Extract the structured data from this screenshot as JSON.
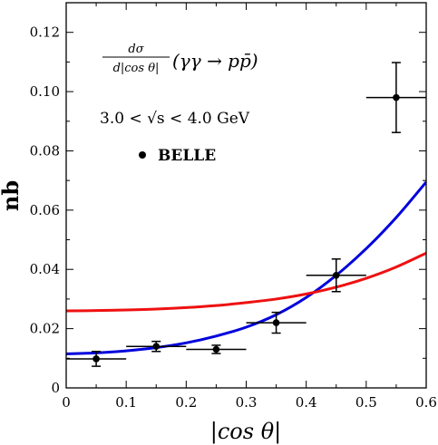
{
  "chart_data": {
    "type": "scatter",
    "xlabel": "|cos θ|",
    "ylabel": "nb",
    "xlim": [
      0,
      0.6
    ],
    "ylim": [
      0,
      0.13
    ],
    "x_ticks": [
      0,
      0.1,
      0.2,
      0.3,
      0.4,
      0.5,
      0.6
    ],
    "x_tick_labels": [
      "0",
      "0.1",
      "0.2",
      "0.3",
      "0.4",
      "0.5",
      "0.6"
    ],
    "y_ticks": [
      0,
      0.02,
      0.04,
      0.06,
      0.08,
      0.1,
      0.12
    ],
    "y_tick_labels": [
      "0",
      "0.02",
      "0.04",
      "0.06",
      "0.08",
      "0.10",
      "0.12"
    ],
    "grid": false,
    "annotations": {
      "process_prefix": "dσ",
      "process_denominator": "d|cos θ|",
      "process": "(γγ → pp̄)",
      "energy_range": "3.0 < √s < 4.0 GeV",
      "legend_label": "BELLE"
    },
    "series": [
      {
        "name": "BELLE",
        "kind": "points_with_errors",
        "color": "#000000",
        "points": [
          {
            "x": 0.05,
            "y": 0.0098,
            "xerr": 0.05,
            "yerr": 0.0025
          },
          {
            "x": 0.15,
            "y": 0.014,
            "xerr": 0.05,
            "yerr": 0.0017
          },
          {
            "x": 0.25,
            "y": 0.013,
            "xerr": 0.05,
            "yerr": 0.0014
          },
          {
            "x": 0.35,
            "y": 0.022,
            "xerr": 0.05,
            "yerr": 0.0035
          },
          {
            "x": 0.45,
            "y": 0.038,
            "xerr": 0.05,
            "yerr": 0.0055
          },
          {
            "x": 0.55,
            "y": 0.098,
            "xerr": 0.05,
            "yerr": 0.0118
          }
        ]
      },
      {
        "kind": "curve",
        "color": "#0000dd",
        "x": [
          0,
          0.05,
          0.1,
          0.15,
          0.2,
          0.25,
          0.3,
          0.35,
          0.4,
          0.45,
          0.5,
          0.55,
          0.6
        ],
        "y": [
          0.0115,
          0.0118,
          0.0125,
          0.0136,
          0.0152,
          0.0175,
          0.0205,
          0.0247,
          0.0305,
          0.038,
          0.047,
          0.0575,
          0.0695
        ]
      },
      {
        "kind": "curve",
        "color": "#ee1111",
        "x": [
          0,
          0.05,
          0.1,
          0.15,
          0.2,
          0.25,
          0.3,
          0.35,
          0.4,
          0.45,
          0.5,
          0.55,
          0.6
        ],
        "y": [
          0.026,
          0.0261,
          0.0263,
          0.0266,
          0.0271,
          0.0278,
          0.0288,
          0.03,
          0.0317,
          0.034,
          0.037,
          0.0408,
          0.0455
        ]
      }
    ]
  }
}
